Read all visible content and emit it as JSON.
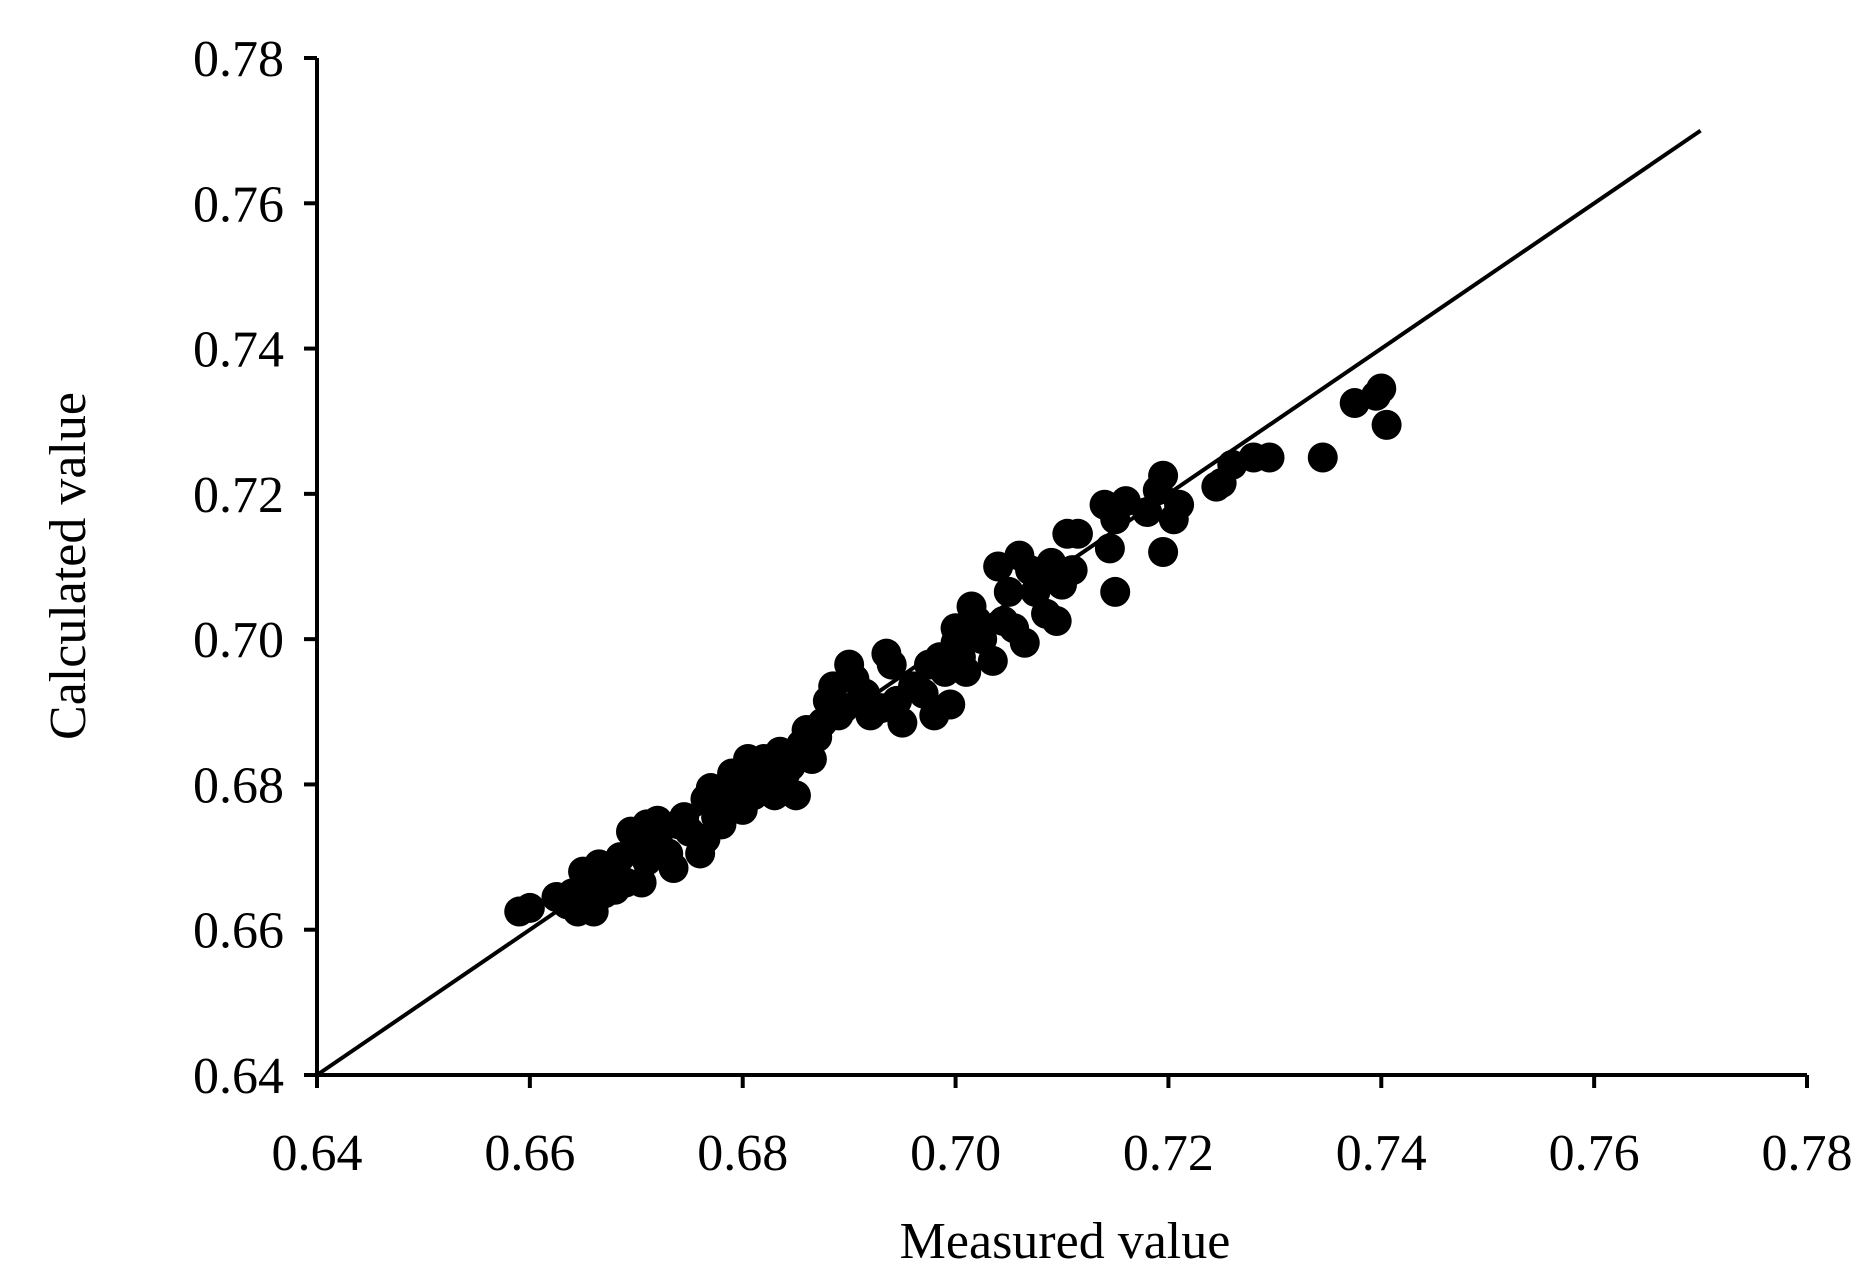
{
  "chart_data": {
    "type": "scatter",
    "title": "",
    "xlabel": "Measured value",
    "ylabel": "Calculated value",
    "xlim": [
      0.64,
      0.78
    ],
    "ylim": [
      0.64,
      0.78
    ],
    "xticks": [
      "0.64",
      "0.66",
      "0.68",
      "0.70",
      "0.72",
      "0.74",
      "0.76",
      "0.78"
    ],
    "yticks": [
      "0.64",
      "0.66",
      "0.68",
      "0.70",
      "0.72",
      "0.74",
      "0.76",
      "0.78"
    ],
    "grid": false,
    "legend": "none",
    "reference_line": {
      "from": [
        0.64,
        0.64
      ],
      "to": [
        0.77,
        0.77
      ]
    },
    "marker_color": "#000000",
    "series": [
      {
        "points": [
          [
            0.659,
            0.6625
          ],
          [
            0.66,
            0.663
          ],
          [
            0.6625,
            0.6645
          ],
          [
            0.6635,
            0.6635
          ],
          [
            0.664,
            0.665
          ],
          [
            0.6645,
            0.6625
          ],
          [
            0.665,
            0.6645
          ],
          [
            0.6655,
            0.6665
          ],
          [
            0.665,
            0.668
          ],
          [
            0.666,
            0.6625
          ],
          [
            0.6665,
            0.669
          ],
          [
            0.667,
            0.665
          ],
          [
            0.6675,
            0.6675
          ],
          [
            0.668,
            0.6655
          ],
          [
            0.6685,
            0.67
          ],
          [
            0.669,
            0.6665
          ],
          [
            0.6695,
            0.6735
          ],
          [
            0.67,
            0.6715
          ],
          [
            0.6705,
            0.6665
          ],
          [
            0.671,
            0.6745
          ],
          [
            0.671,
            0.6695
          ],
          [
            0.672,
            0.675
          ],
          [
            0.672,
            0.6725
          ],
          [
            0.673,
            0.6705
          ],
          [
            0.6735,
            0.6685
          ],
          [
            0.674,
            0.6745
          ],
          [
            0.6745,
            0.6755
          ],
          [
            0.675,
            0.6735
          ],
          [
            0.676,
            0.6705
          ],
          [
            0.6765,
            0.6725
          ],
          [
            0.6765,
            0.678
          ],
          [
            0.677,
            0.6795
          ],
          [
            0.6775,
            0.6755
          ],
          [
            0.678,
            0.6745
          ],
          [
            0.6785,
            0.6775
          ],
          [
            0.679,
            0.6815
          ],
          [
            0.6795,
            0.679
          ],
          [
            0.68,
            0.6765
          ],
          [
            0.6805,
            0.6835
          ],
          [
            0.681,
            0.6785
          ],
          [
            0.6815,
            0.6815
          ],
          [
            0.682,
            0.6835
          ],
          [
            0.6825,
            0.68
          ],
          [
            0.683,
            0.6785
          ],
          [
            0.6835,
            0.6845
          ],
          [
            0.684,
            0.6815
          ],
          [
            0.6845,
            0.6825
          ],
          [
            0.685,
            0.6785
          ],
          [
            0.6855,
            0.6855
          ],
          [
            0.686,
            0.6875
          ],
          [
            0.6865,
            0.6835
          ],
          [
            0.687,
            0.6865
          ],
          [
            0.6875,
            0.6885
          ],
          [
            0.688,
            0.6915
          ],
          [
            0.6885,
            0.6935
          ],
          [
            0.689,
            0.6895
          ],
          [
            0.6895,
            0.6905
          ],
          [
            0.69,
            0.6965
          ],
          [
            0.6905,
            0.6945
          ],
          [
            0.691,
            0.6915
          ],
          [
            0.6915,
            0.6925
          ],
          [
            0.692,
            0.6895
          ],
          [
            0.693,
            0.6905
          ],
          [
            0.6935,
            0.698
          ],
          [
            0.694,
            0.6965
          ],
          [
            0.6945,
            0.6915
          ],
          [
            0.695,
            0.6885
          ],
          [
            0.696,
            0.6935
          ],
          [
            0.697,
            0.6925
          ],
          [
            0.6975,
            0.6965
          ],
          [
            0.698,
            0.6895
          ],
          [
            0.6985,
            0.6975
          ],
          [
            0.699,
            0.6955
          ],
          [
            0.6995,
            0.691
          ],
          [
            0.7,
            0.6995
          ],
          [
            0.7,
            0.7015
          ],
          [
            0.7005,
            0.6975
          ],
          [
            0.701,
            0.6955
          ],
          [
            0.7015,
            0.7045
          ],
          [
            0.702,
            0.7025
          ],
          [
            0.7025,
            0.7
          ],
          [
            0.7035,
            0.697
          ],
          [
            0.704,
            0.71
          ],
          [
            0.7045,
            0.7025
          ],
          [
            0.705,
            0.7065
          ],
          [
            0.7055,
            0.7015
          ],
          [
            0.706,
            0.7115
          ],
          [
            0.7065,
            0.6995
          ],
          [
            0.707,
            0.7095
          ],
          [
            0.7075,
            0.7065
          ],
          [
            0.708,
            0.7085
          ],
          [
            0.7085,
            0.7035
          ],
          [
            0.709,
            0.7105
          ],
          [
            0.7095,
            0.7025
          ],
          [
            0.71,
            0.7075
          ],
          [
            0.7105,
            0.7145
          ],
          [
            0.711,
            0.7095
          ],
          [
            0.7115,
            0.7145
          ],
          [
            0.714,
            0.7185
          ],
          [
            0.7145,
            0.7125
          ],
          [
            0.715,
            0.7165
          ],
          [
            0.715,
            0.7065
          ],
          [
            0.716,
            0.719
          ],
          [
            0.718,
            0.7175
          ],
          [
            0.719,
            0.7205
          ],
          [
            0.7195,
            0.7225
          ],
          [
            0.7195,
            0.712
          ],
          [
            0.7205,
            0.7165
          ],
          [
            0.721,
            0.7185
          ],
          [
            0.7245,
            0.721
          ],
          [
            0.725,
            0.7215
          ],
          [
            0.726,
            0.724
          ],
          [
            0.728,
            0.725
          ],
          [
            0.7295,
            0.725
          ],
          [
            0.7345,
            0.725
          ],
          [
            0.7375,
            0.7325
          ],
          [
            0.7395,
            0.7335
          ],
          [
            0.74,
            0.7345
          ],
          [
            0.7405,
            0.7295
          ]
        ]
      }
    ]
  }
}
